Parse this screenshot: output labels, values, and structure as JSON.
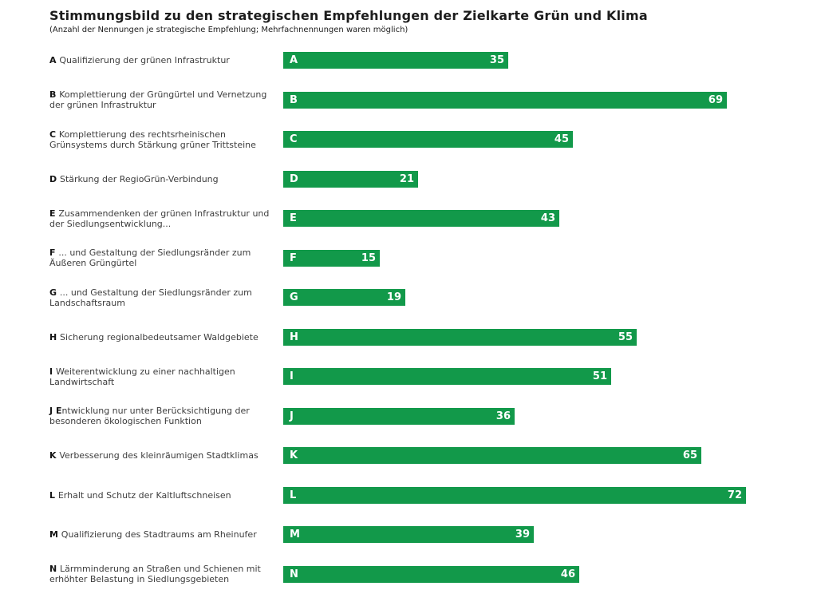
{
  "header": {
    "title": "Stimmungsbild zu den strategischen Empfehlungen der Zielkarte Grün und Klima",
    "subtitle": "(Anzahl der Nennungen je strategische Empfehlung; Mehrfachnennungen waren möglich)"
  },
  "colors": {
    "background": "#ffffff",
    "bar_green": "#12994a",
    "bar_text": "#ffffff",
    "title_text": "#1d1d1d",
    "label_text": "#3d3d3d"
  },
  "chart_data": {
    "type": "bar",
    "orientation": "horizontal",
    "title": "Stimmungsbild zu den strategischen Empfehlungen der Zielkarte Grün und Klima",
    "subtitle": "(Anzahl der Nennungen je strategische Empfehlung; Mehrfachnennungen waren möglich)",
    "xlabel": "",
    "ylabel": "",
    "value_axis_range": [
      0,
      72
    ],
    "grid": false,
    "legend": false,
    "value_label_position": "inside-bar-end",
    "category_label_position": "left-of-bar",
    "categories": [
      "A",
      "B",
      "C",
      "D",
      "E",
      "F",
      "G",
      "H",
      "I",
      "J",
      "K",
      "L",
      "M",
      "N"
    ],
    "values": [
      35,
      69,
      45,
      21,
      43,
      15,
      19,
      55,
      51,
      36,
      65,
      72,
      39,
      46
    ],
    "items": [
      {
        "letter": "A",
        "label": "Qualifizierung der grünen Infrastruktur",
        "value": 35
      },
      {
        "letter": "B",
        "label": "Komplettierung der Grüngürtel und Vernetzung der grünen Infrastruktur",
        "value": 69
      },
      {
        "letter": "C",
        "label": "Komplettierung des rechtsrheinischen Grünsystems durch Stärkung grüner Trittsteine",
        "value": 45
      },
      {
        "letter": "D",
        "label": "Stärkung der RegioGrün-Verbindung",
        "value": 21
      },
      {
        "letter": "E",
        "label": "Zusammendenken der grünen Infrastruktur und der Siedlungsentwicklung...",
        "value": 43
      },
      {
        "letter": "F",
        "label": "... und Gestaltung der Siedlungsränder zum Äußeren Grüngürtel",
        "value": 15
      },
      {
        "letter": "G",
        "label": "... und Gestaltung der Siedlungsränder zum Landschaftsraum",
        "value": 19
      },
      {
        "letter": "H",
        "label": "Sicherung regionalbedeutsamer Waldgebiete",
        "value": 55
      },
      {
        "letter": "I",
        "label": "Weiterentwicklung zu einer nachhaltigen Landwirtschaft",
        "value": 51
      },
      {
        "letter": "J",
        "label": "Entwicklung nur unter Berücksichtigung der besonderen ökologischen Funktion",
        "value": 36,
        "bold_first_char": true
      },
      {
        "letter": "K",
        "label": "Verbesserung des kleinräumigen Stadtklimas",
        "value": 65
      },
      {
        "letter": "L",
        "label": "Erhalt und Schutz der Kaltluftschneisen",
        "value": 72
      },
      {
        "letter": "M",
        "label": "Qualifizierung des Stadtraums am Rheinufer",
        "value": 39
      },
      {
        "letter": "N",
        "label": "Lärmminderung an Straßen und Schienen mit erhöhter Belastung in Siedlungsgebieten",
        "value": 46
      }
    ]
  }
}
